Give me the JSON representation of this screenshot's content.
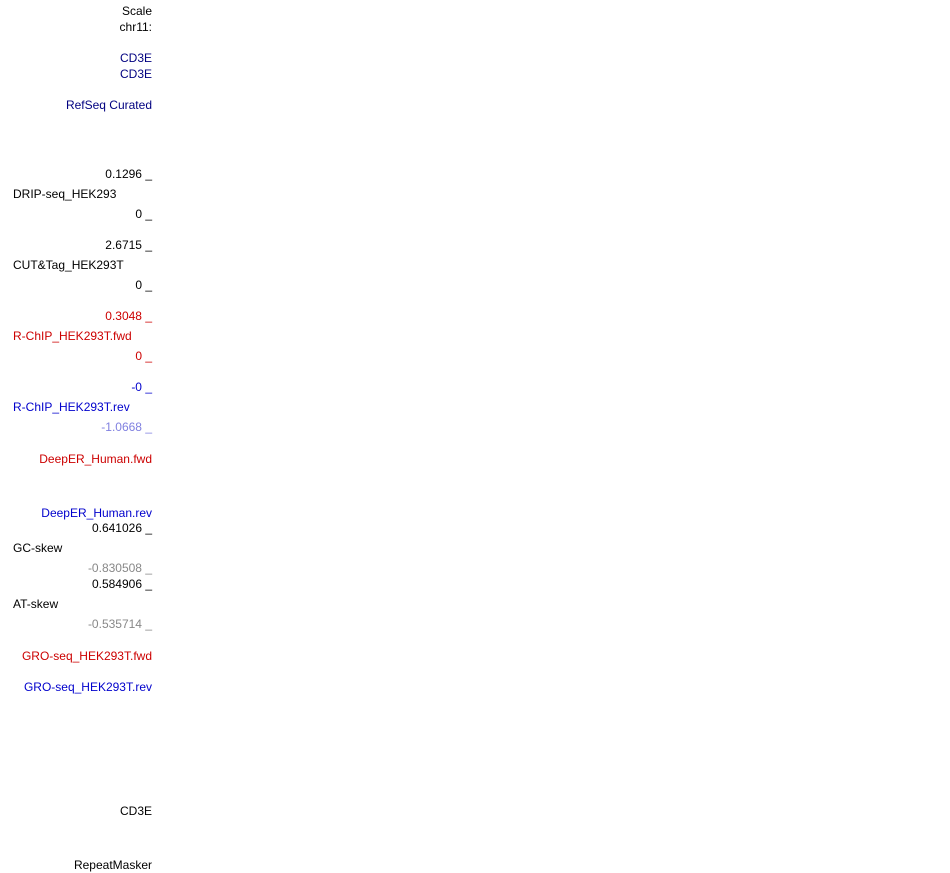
{
  "labels": {
    "scale": "Scale",
    "chrom": "chr11:",
    "gene_1": "CD3E",
    "gene_2": "CD3E",
    "refseq": "RefSeq Curated",
    "drip_max": "0.1296 _",
    "drip_name": "DRIP-seq_HEK293",
    "drip_min": "0 _",
    "cut_max": "2.6715 _",
    "cut_name": "CUT&Tag_HEK293T",
    "cut_min": "0 _",
    "rchip_fwd_max": "0.3048 _",
    "rchip_fwd_name": "R-ChIP_HEK293T.fwd",
    "rchip_fwd_min": "0 _",
    "rchip_rev_max": "-0 _",
    "rchip_rev_name": "R-ChIP_HEK293T.rev",
    "rchip_rev_min": "-1.0668 _",
    "deeper_fwd": "DeepER_Human.fwd",
    "deeper_rev": "DeepER_Human.rev",
    "gc_max": "0.641026 _",
    "gc_name": "GC-skew",
    "gc_min": "-0.830508 _",
    "at_max": "0.584906 _",
    "at_name": "AT-skew",
    "at_min": "-0.535714 _",
    "gro_fwd": "GRO-seq_HEK293T.fwd",
    "gro_rev": "GRO-seq_HEK293T.rev",
    "gene_3": "CD3E",
    "repeatmasker": "RepeatMasker"
  },
  "colors": {
    "black": "#000000",
    "navy": "#000080",
    "red": "#cc0000",
    "blue": "#0000cc",
    "light_blue": "#8080e0",
    "grey": "#888888"
  }
}
